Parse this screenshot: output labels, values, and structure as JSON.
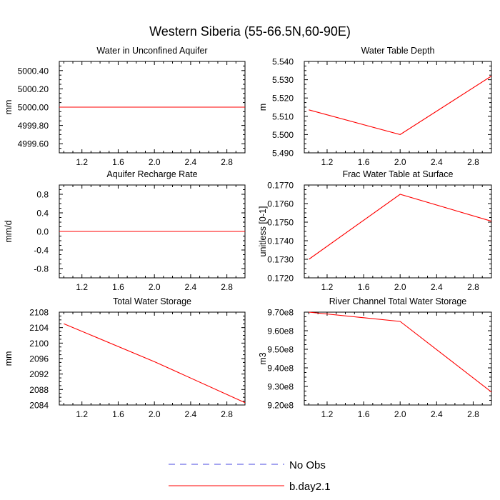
{
  "figure_title": "Western Siberia (55-66.5N,60-90E)",
  "chart_data": [
    {
      "type": "line",
      "title": "Water in Unconfined Aquifer",
      "ylabel": "mm",
      "xlim": [
        0.95,
        3.0
      ],
      "ylim": [
        4999.5,
        5000.5
      ],
      "x_ticks": [
        1.2,
        1.6,
        2.0,
        2.4,
        2.8
      ],
      "x_tick_labels": [
        "1.2",
        "1.6",
        "2.0",
        "2.4",
        "2.8"
      ],
      "y_ticks": [
        4999.6,
        4999.8,
        5000.0,
        5000.2,
        5000.4
      ],
      "y_tick_labels": [
        "4999.60",
        "4999.80",
        "5000.00",
        "5000.20",
        "5000.40"
      ],
      "series": [
        {
          "name": "b.day2.1",
          "x": [
            0.95,
            1.0,
            2.0,
            3.0
          ],
          "y": [
            5000.0,
            5000.0,
            5000.0,
            5000.0
          ]
        }
      ]
    },
    {
      "type": "line",
      "title": "Water Table Depth",
      "ylabel": "m",
      "xlim": [
        0.95,
        3.0
      ],
      "ylim": [
        5.49,
        5.54
      ],
      "x_ticks": [
        1.2,
        1.6,
        2.0,
        2.4,
        2.8
      ],
      "x_tick_labels": [
        "1.2",
        "1.6",
        "2.0",
        "2.4",
        "2.8"
      ],
      "y_ticks": [
        5.49,
        5.5,
        5.51,
        5.52,
        5.53,
        5.54
      ],
      "y_tick_labels": [
        "5.490",
        "5.500",
        "5.510",
        "5.520",
        "5.530",
        "5.540"
      ],
      "series": [
        {
          "name": "b.day2.1",
          "x": [
            1.0,
            2.0,
            3.0
          ],
          "y": [
            5.5135,
            5.5,
            5.532
          ]
        }
      ]
    },
    {
      "type": "line",
      "title": "Aquifer Recharge Rate",
      "ylabel": "mm/d",
      "xlim": [
        0.95,
        3.0
      ],
      "ylim": [
        -1.0,
        1.0
      ],
      "x_ticks": [
        1.2,
        1.6,
        2.0,
        2.4,
        2.8
      ],
      "x_tick_labels": [
        "1.2",
        "1.6",
        "2.0",
        "2.4",
        "2.8"
      ],
      "y_ticks": [
        -0.8,
        -0.4,
        0.0,
        0.4,
        0.8
      ],
      "y_tick_labels": [
        "-0.8",
        "-0.4",
        "0.0",
        "0.4",
        "0.8"
      ],
      "series": [
        {
          "name": "b.day2.1",
          "x": [
            0.95,
            1.0,
            2.0,
            3.0
          ],
          "y": [
            0.0,
            0.0,
            0.0,
            0.0
          ]
        }
      ]
    },
    {
      "type": "line",
      "title": "Frac Water Table at Surface",
      "ylabel": "unitless [0-1]",
      "xlim": [
        0.95,
        3.0
      ],
      "ylim": [
        0.172,
        0.177
      ],
      "x_ticks": [
        1.2,
        1.6,
        2.0,
        2.4,
        2.8
      ],
      "x_tick_labels": [
        "1.2",
        "1.6",
        "2.0",
        "2.4",
        "2.8"
      ],
      "y_ticks": [
        0.172,
        0.173,
        0.174,
        0.175,
        0.176,
        0.177
      ],
      "y_tick_labels": [
        "0.1720",
        "0.1730",
        "0.1740",
        "0.1750",
        "0.1760",
        "0.1770"
      ],
      "series": [
        {
          "name": "b.day2.1",
          "x": [
            1.0,
            2.0,
            3.0
          ],
          "y": [
            0.173,
            0.1765,
            0.17505
          ]
        }
      ]
    },
    {
      "type": "line",
      "title": "Total Water Storage",
      "ylabel": "mm",
      "xlim": [
        0.95,
        3.0
      ],
      "ylim": [
        2084,
        2108
      ],
      "x_ticks": [
        1.2,
        1.6,
        2.0,
        2.4,
        2.8
      ],
      "x_tick_labels": [
        "1.2",
        "1.6",
        "2.0",
        "2.4",
        "2.8"
      ],
      "y_ticks": [
        2084,
        2088,
        2092,
        2096,
        2100,
        2104,
        2108
      ],
      "y_tick_labels": [
        "2084",
        "2088",
        "2092",
        "2096",
        "2100",
        "2104",
        "2108"
      ],
      "series": [
        {
          "name": "b.day2.1",
          "x": [
            1.0,
            2.0,
            3.0
          ],
          "y": [
            2105,
            2095.2,
            2084.6
          ]
        }
      ]
    },
    {
      "type": "line",
      "title": "River Channel Total Water Storage",
      "ylabel": "m3",
      "xlim": [
        0.95,
        3.0
      ],
      "ylim": [
        920000000,
        970000000
      ],
      "x_ticks": [
        1.2,
        1.6,
        2.0,
        2.4,
        2.8
      ],
      "x_tick_labels": [
        "1.2",
        "1.6",
        "2.0",
        "2.4",
        "2.8"
      ],
      "y_ticks": [
        920000000,
        930000000,
        940000000,
        950000000,
        960000000,
        970000000
      ],
      "y_tick_labels": [
        "9.20e8",
        "9.30e8",
        "9.40e8",
        "9.50e8",
        "9.60e8",
        "9.70e8"
      ],
      "series": [
        {
          "name": "b.day2.1",
          "x": [
            1.0,
            2.0,
            3.0
          ],
          "y": [
            970000000,
            965000000,
            927000000
          ]
        }
      ]
    }
  ],
  "legend": [
    {
      "label": "No Obs",
      "style": "dashed",
      "color": "#4a4ae0"
    },
    {
      "label": "b.day2.1",
      "style": "solid",
      "color": "#ff0000"
    }
  ],
  "colors": {
    "series": "#ff0000",
    "axis": "#000000"
  }
}
